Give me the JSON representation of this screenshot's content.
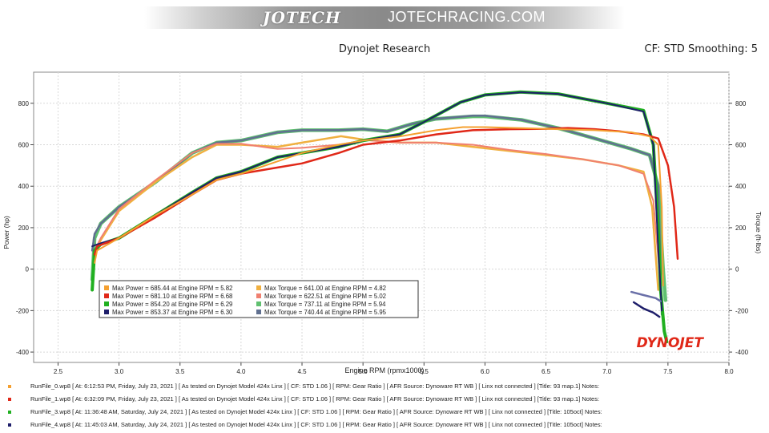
{
  "header": {
    "logo_text": "JOTECH",
    "site_text": "JOTECHRACING.COM",
    "chart_title": "Dynojet Research",
    "cf_smoothing": "CF: STD Smoothing: 5"
  },
  "brand_mark": "DYNOJET",
  "colors": {
    "run0": "#f5a030",
    "run1": "#e02818",
    "run3": "#20b020",
    "run4": "#1e1e6a",
    "tq0": "#f0b040",
    "tq1": "#f08070",
    "tq3": "#60c070",
    "tq4": "#607090"
  },
  "chart_data": {
    "type": "line",
    "title": "Dynojet Research",
    "xlabel": "Engine RPM (rpmx1000)",
    "ylabel_left": "Power (hp)",
    "ylabel_right": "Torque (ft-lbs)",
    "xlim": [
      2.3,
      8.0
    ],
    "ylim": [
      -450,
      950
    ],
    "x_ticks": [
      "2.5",
      "3.0",
      "3.5",
      "4.0",
      "4.5",
      "5.0",
      "5.5",
      "6.0",
      "6.5",
      "7.0",
      "7.5",
      "8.0"
    ],
    "y_ticks_left": [
      "800",
      "600",
      "400",
      "200",
      "0",
      "-200",
      "-400"
    ],
    "y_ticks_right": [
      "800",
      "600",
      "400",
      "200",
      "0",
      "-200",
      "-400"
    ],
    "grid": true,
    "legend_placement": "lower-left",
    "legend": [
      {
        "label": "Max Power = 685.44 at Engine RPM = 5.82",
        "color": "#f5a030"
      },
      {
        "label": "Max Power = 681.10 at Engine RPM = 6.68",
        "color": "#e02818"
      },
      {
        "label": "Max Power = 854.20 at Engine RPM = 6.29",
        "color": "#20b020"
      },
      {
        "label": "Max Power = 853.37 at Engine RPM = 6.30",
        "color": "#1e1e6a"
      },
      {
        "label": "Max Torque = 641.00 at Engine RPM = 4.82",
        "color": "#f0b040"
      },
      {
        "label": "Max Torque = 622.51 at Engine RPM = 5.02",
        "color": "#f08070"
      },
      {
        "label": "Max Torque = 737.11 at Engine RPM = 5.94",
        "color": "#60c070"
      },
      {
        "label": "Max Torque = 740.44 at Engine RPM = 5.95",
        "color": "#607090"
      }
    ],
    "series": [
      {
        "color": "#60c070",
        "width": 4.5,
        "x": [
          2.78,
          2.8,
          2.85,
          3.0,
          3.3,
          3.6,
          3.8,
          4.0,
          4.3,
          4.5,
          4.8,
          5.0,
          5.2,
          5.4,
          5.6,
          5.9,
          6.0,
          6.3,
          6.6,
          6.9,
          7.2,
          7.35,
          7.42,
          7.46,
          7.48
        ],
        "y": [
          -50,
          150,
          220,
          300,
          420,
          560,
          610,
          620,
          660,
          670,
          670,
          675,
          665,
          700,
          725,
          737,
          737,
          720,
          680,
          630,
          580,
          550,
          400,
          0,
          -150
        ]
      },
      {
        "color": "#607090",
        "width": 2.5,
        "x": [
          2.78,
          2.8,
          2.85,
          3.0,
          3.3,
          3.6,
          3.8,
          4.0,
          4.3,
          4.5,
          4.8,
          5.0,
          5.2,
          5.4,
          5.6,
          5.9,
          6.0,
          6.3,
          6.6,
          6.9,
          7.2,
          7.35,
          7.42,
          7.45
        ],
        "y": [
          90,
          170,
          220,
          300,
          420,
          560,
          610,
          620,
          660,
          670,
          670,
          675,
          665,
          700,
          725,
          740,
          740,
          720,
          680,
          630,
          580,
          550,
          400,
          -220
        ]
      },
      {
        "color": "#f0b040",
        "width": 2.5,
        "x": [
          2.8,
          2.85,
          3.0,
          3.3,
          3.6,
          3.8,
          4.0,
          4.3,
          4.5,
          4.82,
          5.0,
          5.3,
          5.6,
          5.9,
          6.2,
          6.5,
          6.8,
          7.1,
          7.3,
          7.37,
          7.42
        ],
        "y": [
          70,
          140,
          280,
          420,
          540,
          600,
          600,
          590,
          610,
          641,
          625,
          610,
          610,
          590,
          570,
          550,
          530,
          500,
          470,
          300,
          -100
        ]
      },
      {
        "color": "#f08070",
        "width": 2.0,
        "x": [
          2.8,
          2.85,
          3.0,
          3.3,
          3.6,
          3.8,
          4.0,
          4.3,
          4.5,
          4.8,
          5.02,
          5.3,
          5.6,
          5.9,
          6.2,
          6.5,
          6.8,
          7.1,
          7.3,
          7.38,
          7.43
        ],
        "y": [
          90,
          150,
          290,
          430,
          560,
          605,
          605,
          580,
          585,
          600,
          622,
          610,
          610,
          600,
          575,
          555,
          530,
          500,
          460,
          330,
          -10
        ]
      },
      {
        "color": "#20b020",
        "width": 4.0,
        "x": [
          2.78,
          2.8,
          2.85,
          3.0,
          3.3,
          3.6,
          3.8,
          4.0,
          4.3,
          4.5,
          4.8,
          5.0,
          5.3,
          5.5,
          5.8,
          6.0,
          6.29,
          6.6,
          7.0,
          7.3,
          7.38,
          7.42,
          7.44,
          7.47,
          7.49
        ],
        "y": [
          -100,
          90,
          120,
          150,
          260,
          370,
          440,
          470,
          540,
          560,
          590,
          620,
          650,
          710,
          805,
          840,
          854,
          845,
          800,
          765,
          600,
          200,
          -100,
          -300,
          -350
        ]
      },
      {
        "color": "#1e1e6a",
        "width": 2.0,
        "x": [
          2.78,
          2.8,
          2.85,
          3.0,
          3.3,
          3.6,
          3.8,
          4.0,
          4.3,
          4.5,
          4.8,
          5.0,
          5.3,
          5.5,
          5.8,
          6.0,
          6.3,
          6.6,
          7.0,
          7.3,
          7.38,
          7.42,
          7.45
        ],
        "y": [
          110,
          115,
          125,
          150,
          260,
          370,
          440,
          470,
          540,
          560,
          590,
          620,
          650,
          710,
          805,
          840,
          853,
          845,
          800,
          760,
          600,
          100,
          -200
        ]
      },
      {
        "color": "#e02818",
        "width": 2.5,
        "x": [
          2.8,
          2.82,
          3.0,
          3.3,
          3.6,
          3.8,
          4.0,
          4.3,
          4.5,
          4.8,
          5.0,
          5.3,
          5.6,
          5.9,
          6.2,
          6.5,
          6.68,
          6.9,
          7.1,
          7.3,
          7.42,
          7.5,
          7.55,
          7.58
        ],
        "y": [
          70,
          110,
          150,
          250,
          360,
          430,
          460,
          490,
          510,
          560,
          600,
          620,
          650,
          670,
          675,
          677,
          681,
          675,
          665,
          650,
          630,
          500,
          300,
          50
        ]
      },
      {
        "color": "#f5a030",
        "width": 2.0,
        "x": [
          2.8,
          2.82,
          3.0,
          3.3,
          3.6,
          3.8,
          4.0,
          4.3,
          4.5,
          4.8,
          5.0,
          5.3,
          5.6,
          5.82,
          6.0,
          6.3,
          6.6,
          6.9,
          7.2,
          7.35,
          7.42,
          7.45,
          7.46
        ],
        "y": [
          30,
          90,
          150,
          260,
          360,
          430,
          460,
          520,
          560,
          600,
          620,
          640,
          670,
          685,
          685,
          680,
          675,
          670,
          660,
          640,
          600,
          300,
          -80
        ]
      },
      {
        "color": "#6a70a8",
        "width": 2.5,
        "x": [
          7.2,
          7.3,
          7.4,
          7.44
        ],
        "y": [
          -110,
          -125,
          -140,
          -155
        ]
      },
      {
        "color": "#1e1e6a",
        "width": 2.5,
        "x": [
          7.22,
          7.3,
          7.38,
          7.43
        ],
        "y": [
          -160,
          -190,
          -210,
          -230
        ]
      }
    ]
  },
  "footer": {
    "runs": [
      {
        "text": "RunFile_0.wp8  [ At:  6:12:53 PM, Friday, July 23, 2021 ]  [ As tested on Dynojet Model 424x Linx ]  [ CF: STD 1.06 ]  [ RPM: Gear Ratio ]  [ AFR Source: Dynoware RT WB ]  [ Linx not connected ]  [Title: 93 map.1]   Notes:",
        "color": "#f5a030"
      },
      {
        "text": "RunFile_1.wp8  [ At:  6:32:09 PM, Friday, July 23, 2021 ]  [ As tested on Dynojet Model 424x Linx ]  [ CF: STD 1.06 ]  [ RPM: Gear Ratio ]  [ AFR Source: Dynoware RT WB ]  [ Linx not connected ]  [Title: 93 map.1]   Notes:",
        "color": "#e02818"
      },
      {
        "text": "RunFile_3.wp8  [ At:  11:36:48 AM, Saturday, July 24, 2021 ]  [ As tested on Dynojet Model 424x Linx ]  [ CF: STD 1.06 ]  [ RPM: Gear Ratio ]  [ AFR Source: Dynoware RT WB ]  [ Linx not connected ]  [Title: 105oct]   Notes:",
        "color": "#20b020"
      },
      {
        "text": "RunFile_4.wp8  [ At:  11:45:03 AM, Saturday, July 24, 2021 ]  [ As tested on Dynojet Model 424x Linx ]  [ CF: STD 1.06 ]  [ RPM: Gear Ratio ]  [ AFR Source: Dynoware RT WB ]  [ Linx not connected ]  [Title: 105oct]   Notes:",
        "color": "#1e1e6a"
      }
    ]
  }
}
